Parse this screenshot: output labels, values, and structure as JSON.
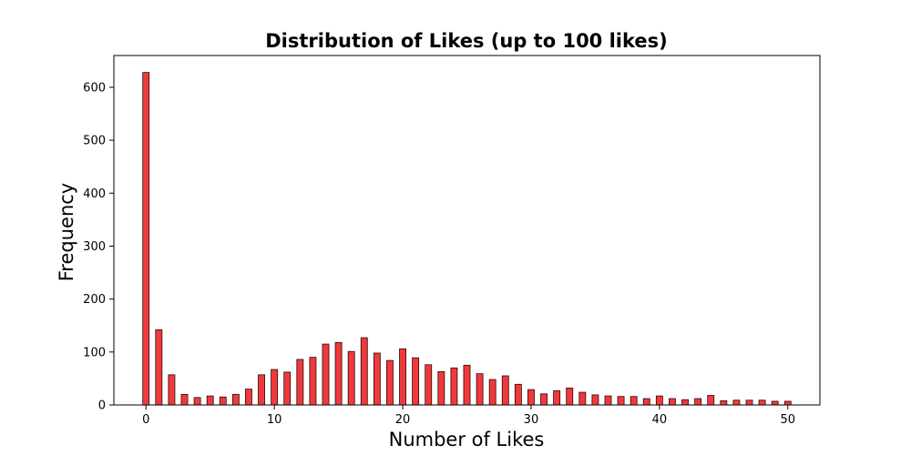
{
  "chart_data": {
    "type": "bar",
    "title": "Distribution of Likes (up to 100 likes)",
    "xlabel": "Number of Likes",
    "ylabel": "Frequency",
    "x": [
      0,
      1,
      2,
      3,
      4,
      5,
      6,
      7,
      8,
      9,
      10,
      11,
      12,
      13,
      14,
      15,
      16,
      17,
      18,
      19,
      20,
      21,
      22,
      23,
      24,
      25,
      26,
      27,
      28,
      29,
      30,
      31,
      32,
      33,
      34,
      35,
      36,
      37,
      38,
      39,
      40,
      41,
      42,
      43,
      44,
      45,
      46,
      47,
      48,
      49,
      50
    ],
    "values": [
      628,
      142,
      57,
      20,
      14,
      17,
      15,
      20,
      30,
      57,
      67,
      62,
      86,
      90,
      115,
      118,
      101,
      127,
      98,
      84,
      106,
      89,
      76,
      63,
      70,
      75,
      59,
      48,
      55,
      39,
      29,
      21,
      27,
      32,
      24,
      19,
      17,
      16,
      16,
      12,
      17,
      12,
      10,
      12,
      18,
      8,
      9,
      9,
      9,
      7,
      7
    ],
    "xlim": [
      -2.5,
      52.5
    ],
    "ylim": [
      0,
      660
    ],
    "xticks": [
      "0",
      "10",
      "20",
      "30",
      "40",
      "50"
    ],
    "yticks": [
      "0",
      "100",
      "200",
      "300",
      "400",
      "500",
      "600"
    ],
    "bar_color": "#f0393c",
    "edge_color": "#2a0a0a",
    "grid": false
  }
}
